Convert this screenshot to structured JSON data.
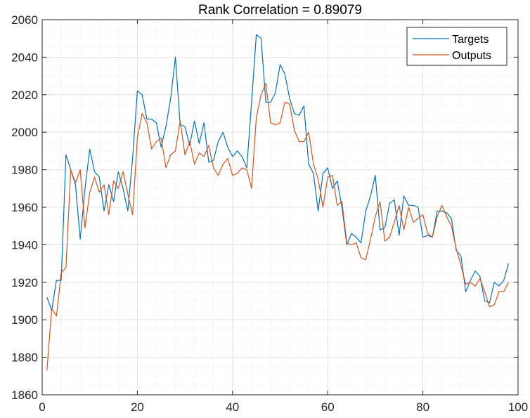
{
  "chart_data": {
    "type": "line",
    "title": "Rank Correlation = 0.89079",
    "xlabel": "",
    "ylabel": "",
    "xlim": [
      0,
      100
    ],
    "ylim": [
      1860,
      2060
    ],
    "xticks": [
      0,
      20,
      40,
      60,
      80,
      100
    ],
    "yticks": [
      1860,
      1880,
      1900,
      1920,
      1940,
      1960,
      1980,
      2000,
      2020,
      2040,
      2060
    ],
    "grid": true,
    "minor_grid": true,
    "legend_position": "top-right",
    "x": [
      1,
      2,
      3,
      4,
      5,
      6,
      7,
      8,
      9,
      10,
      11,
      12,
      13,
      14,
      15,
      16,
      17,
      18,
      19,
      20,
      21,
      22,
      23,
      24,
      25,
      26,
      27,
      28,
      29,
      30,
      31,
      32,
      33,
      34,
      35,
      36,
      37,
      38,
      39,
      40,
      41,
      42,
      43,
      44,
      45,
      46,
      47,
      48,
      49,
      50,
      51,
      52,
      53,
      54,
      55,
      56,
      57,
      58,
      59,
      60,
      61,
      62,
      63,
      64,
      65,
      66,
      67,
      68,
      69,
      70,
      71,
      72,
      73,
      74,
      75,
      76,
      77,
      78,
      79,
      80,
      81,
      82,
      83,
      84,
      85,
      86,
      87,
      88,
      89,
      90,
      91,
      92,
      93,
      94,
      95,
      96,
      97,
      98
    ],
    "series": [
      {
        "name": "Targets",
        "color": "#0072BD",
        "values": [
          1912,
          1905,
          1921,
          1921,
          1988,
          1980,
          1972,
          1943,
          1970,
          1991,
          1979,
          1976,
          1958,
          1972,
          1963,
          1979,
          1970,
          1958,
          1986,
          2022,
          2020,
          2007,
          2007,
          2005,
          1992,
          2003,
          2018,
          2040,
          2004,
          2003,
          1993,
          2006,
          1994,
          2005,
          1984,
          1985,
          1995,
          2000,
          1992,
          1987,
          1990,
          1987,
          1981,
          2016,
          2052,
          2050,
          2016,
          2016,
          2021,
          2036,
          2031,
          2018,
          2010,
          2009,
          2014,
          1983,
          1978,
          1958,
          1978,
          1981,
          1970,
          1974,
          1960,
          1940,
          1946,
          1944,
          1941,
          1958,
          1966,
          1977,
          1948,
          1949,
          1962,
          1964,
          1945,
          1966,
          1961,
          1961,
          1960,
          1944,
          1945,
          1944,
          1958,
          1958,
          1957,
          1954,
          1937,
          1934,
          1915,
          1921,
          1926,
          1923,
          1910,
          1909,
          1920,
          1918,
          1921,
          1930
        ]
      },
      {
        "name": "Outputs",
        "color": "#D95319",
        "values": [
          1873,
          1906,
          1902,
          1925,
          1928,
          1980,
          1973,
          1980,
          1949,
          1968,
          1976,
          1968,
          1972,
          1956,
          1974,
          1970,
          1979,
          1967,
          1956,
          1997,
          2010,
          2005,
          1991,
          1995,
          1997,
          1981,
          1988,
          1990,
          2006,
          1988,
          1995,
          1983,
          1989,
          1987,
          1993,
          1981,
          1977,
          1983,
          1986,
          1977,
          1978,
          1981,
          1980,
          1970,
          2008,
          2020,
          2026,
          2005,
          2004,
          2005,
          2016,
          2015,
          2001,
          1995,
          1995,
          2000,
          1983,
          1975,
          1960,
          1976,
          1977,
          1961,
          1963,
          1941,
          1940,
          1941,
          1933,
          1932,
          1943,
          1955,
          1963,
          1942,
          1944,
          1952,
          1961,
          1948,
          1960,
          1952,
          1954,
          1956,
          1946,
          1944,
          1955,
          1961,
          1955,
          1950,
          1938,
          1929,
          1919,
          1920,
          1918,
          1922,
          1915,
          1907,
          1908,
          1915,
          1915,
          1920
        ]
      }
    ]
  }
}
